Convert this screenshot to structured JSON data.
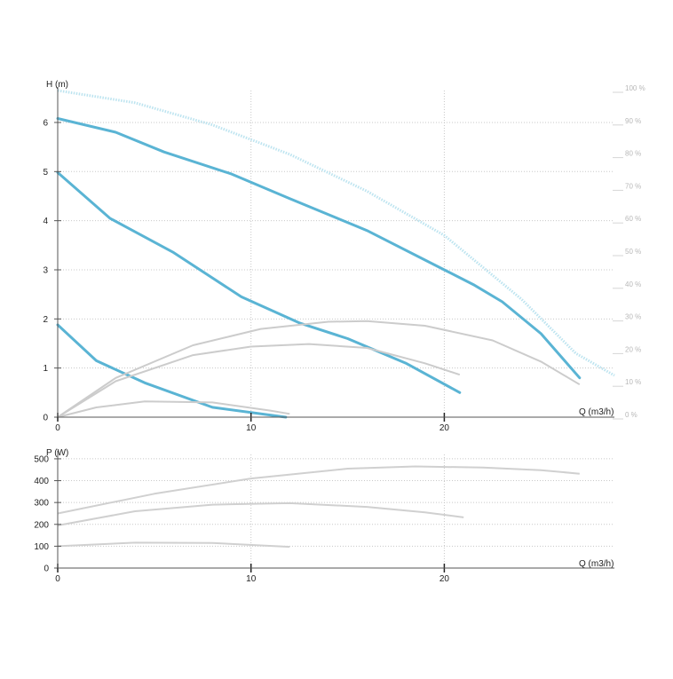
{
  "colors": {
    "head_curve": "#5ab4d4",
    "max_head_curve": "#bde4f0",
    "efficiency_curve": "#cccccc",
    "power_curve": "#d0d0d0",
    "grid": "#c8c8c8",
    "axis": "#555555",
    "right_axis_text": "#b8b8b8"
  },
  "chart_data": [
    {
      "type": "line",
      "xlabel": "Q (m3/h)",
      "ylabel": "H (m)",
      "y2label": "",
      "xlim": [
        0,
        28.8
      ],
      "ylim": [
        0,
        6.65
      ],
      "y2lim": [
        0,
        100
      ],
      "x_ticks": [
        "0",
        "10",
        "20"
      ],
      "y_ticks": [
        "0",
        "1",
        "2",
        "3",
        "4",
        "5",
        "6"
      ],
      "y2_ticks": [
        "0 %",
        "10 %",
        "20 %",
        "30 %",
        "40 %",
        "50 %",
        "60 %",
        "70 %",
        "80 %",
        "90 %",
        "100 %"
      ],
      "grid": true,
      "series": [
        {
          "role": "head",
          "points": [
            [
              0,
              6.08
            ],
            [
              3,
              5.8
            ],
            [
              5.5,
              5.4
            ],
            [
              9,
              4.95
            ],
            [
              12,
              4.45
            ],
            [
              16,
              3.8
            ],
            [
              20,
              3.0
            ],
            [
              21.5,
              2.7
            ],
            [
              23,
              2.35
            ],
            [
              25,
              1.7
            ],
            [
              27,
              0.8
            ]
          ]
        },
        {
          "role": "head",
          "points": [
            [
              0,
              4.98
            ],
            [
              2.7,
              4.05
            ],
            [
              6,
              3.35
            ],
            [
              9.5,
              2.45
            ],
            [
              12.5,
              1.92
            ],
            [
              15,
              1.6
            ],
            [
              18,
              1.1
            ],
            [
              20.8,
              0.5
            ]
          ]
        },
        {
          "role": "head",
          "points": [
            [
              0,
              1.88
            ],
            [
              2,
              1.15
            ],
            [
              4.5,
              0.7
            ],
            [
              8,
              0.2
            ],
            [
              11.8,
              0
            ]
          ]
        },
        {
          "role": "max_head",
          "points": [
            [
              0,
              6.65
            ],
            [
              4,
              6.4
            ],
            [
              8,
              5.95
            ],
            [
              12,
              5.35
            ],
            [
              16,
              4.6
            ],
            [
              20,
              3.7
            ],
            [
              24,
              2.4
            ],
            [
              26.8,
              1.3
            ],
            [
              28.8,
              0.85
            ]
          ]
        },
        {
          "role": "efficiency",
          "points": [
            [
              0,
              0
            ],
            [
              3,
              12
            ],
            [
              7,
              22
            ],
            [
              10.5,
              27
            ],
            [
              14,
              29.2
            ],
            [
              16,
              29.4
            ],
            [
              19,
              28
            ],
            [
              22.5,
              23.5
            ],
            [
              25,
              17
            ],
            [
              27,
              10
            ]
          ]
        },
        {
          "role": "efficiency",
          "points": [
            [
              0,
              0
            ],
            [
              3,
              11
            ],
            [
              7,
              19
            ],
            [
              10,
              21.6
            ],
            [
              13,
              22.4
            ],
            [
              16,
              21.2
            ],
            [
              19,
              16.5
            ],
            [
              20.8,
              13
            ]
          ]
        },
        {
          "role": "efficiency",
          "points": [
            [
              0,
              0
            ],
            [
              2,
              3
            ],
            [
              4.5,
              4.8
            ],
            [
              8,
              4.5
            ],
            [
              11,
              2
            ],
            [
              12,
              1
            ]
          ]
        }
      ]
    },
    {
      "type": "line",
      "xlabel": "Q (m3/h)",
      "ylabel": "P (W)",
      "xlim": [
        0,
        28.8
      ],
      "ylim": [
        0,
        520
      ],
      "x_ticks": [
        "0",
        "10",
        "20"
      ],
      "y_ticks": [
        "0",
        "100",
        "200",
        "300",
        "400",
        "500"
      ],
      "grid": true,
      "series": [
        {
          "role": "power",
          "points": [
            [
              0,
              250
            ],
            [
              5,
              340
            ],
            [
              10,
              410
            ],
            [
              15,
              455
            ],
            [
              18.5,
              465
            ],
            [
              22,
              460
            ],
            [
              25,
              448
            ],
            [
              27,
              432
            ]
          ]
        },
        {
          "role": "power",
          "points": [
            [
              0,
              195
            ],
            [
              4,
              260
            ],
            [
              8,
              290
            ],
            [
              12,
              297
            ],
            [
              16,
              280
            ],
            [
              19,
              255
            ],
            [
              21,
              232
            ]
          ]
        },
        {
          "role": "power",
          "points": [
            [
              0,
              100
            ],
            [
              4,
              116
            ],
            [
              8,
              115
            ],
            [
              12,
              97
            ]
          ]
        }
      ]
    }
  ]
}
